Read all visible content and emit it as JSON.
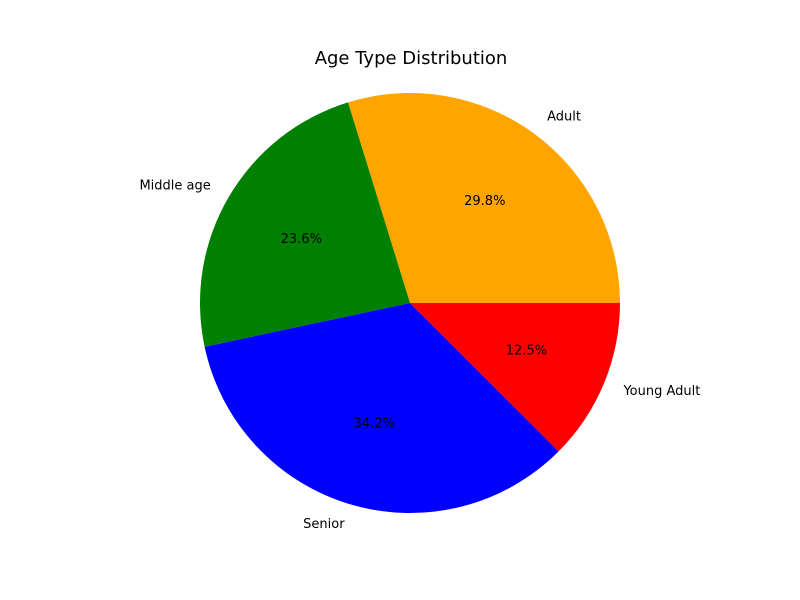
{
  "chart_data": {
    "type": "pie",
    "title": "Age Type Distribution",
    "labels": [
      "Adult",
      "Middle age",
      "Senior",
      "Young Adult"
    ],
    "values": [
      29.8,
      23.6,
      34.2,
      12.5
    ],
    "percent_labels": [
      "29.8%",
      "23.6%",
      "34.2%",
      "12.5%"
    ],
    "colors": [
      "#ffa500",
      "#008000",
      "#0000ff",
      "#ff0000"
    ],
    "start_angle_deg": 0,
    "direction": "counterclockwise"
  }
}
